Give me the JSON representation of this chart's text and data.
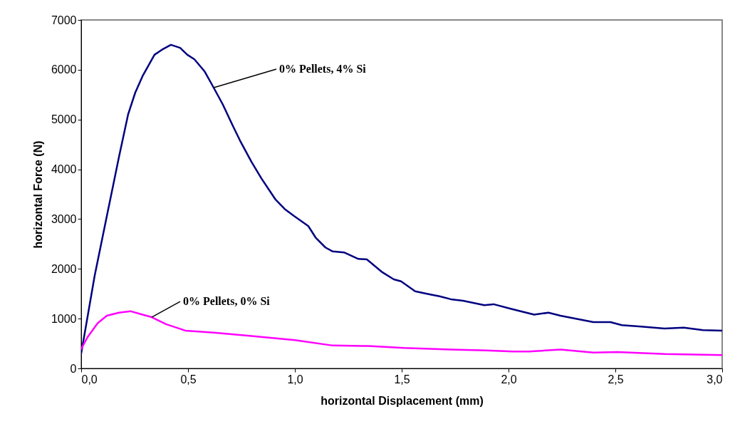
{
  "chart_data": {
    "type": "line",
    "xlabel": "horizontal Displacement (mm)",
    "ylabel": "horizontal Force (N)",
    "xlim": [
      0,
      3
    ],
    "xticks": [
      {
        "value": 0,
        "label": "0,0"
      },
      {
        "value": 0.5,
        "label": "0,5"
      },
      {
        "value": 1,
        "label": "1,0"
      },
      {
        "value": 1.5,
        "label": "1,5"
      },
      {
        "value": 2,
        "label": "2,0"
      },
      {
        "value": 2.5,
        "label": "2,5"
      },
      {
        "value": 3,
        "label": "3,0"
      }
    ],
    "ylim": [
      0,
      7000
    ],
    "yticks": [
      0,
      1000,
      2000,
      3000,
      4000,
      5000,
      6000,
      7000
    ],
    "grid": false,
    "series": [
      {
        "color": "#000080",
        "x": [
          0,
          0.063,
          0.12,
          0.177,
          0.22,
          0.253,
          0.287,
          0.343,
          0.377,
          0.42,
          0.463,
          0.497,
          0.53,
          0.577,
          0.62,
          0.663,
          0.71,
          0.743,
          0.797,
          0.843,
          0.91,
          0.953,
          0.997,
          1.063,
          1.097,
          1.143,
          1.177,
          1.23,
          1.297,
          1.337,
          1.41,
          1.463,
          1.497,
          1.563,
          1.63,
          1.677,
          1.73,
          1.787,
          1.887,
          1.93,
          2.01,
          2.12,
          2.187,
          2.243,
          2.397,
          2.477,
          2.53,
          2.62,
          2.73,
          2.82,
          2.91,
          3.0
        ],
        "values": [
          300,
          1860,
          3060,
          4250,
          5110,
          5540,
          5870,
          6300,
          6400,
          6500,
          6440,
          6300,
          6210,
          5970,
          5640,
          5300,
          4870,
          4580,
          4150,
          3820,
          3390,
          3200,
          3060,
          2860,
          2630,
          2430,
          2350,
          2330,
          2200,
          2190,
          1930,
          1790,
          1750,
          1550,
          1490,
          1450,
          1390,
          1360,
          1270,
          1290,
          1200,
          1080,
          1120,
          1060,
          930,
          930,
          870,
          840,
          800,
          820,
          770,
          760
        ]
      },
      {
        "color": "#ff00ff",
        "x": [
          0,
          0.03,
          0.077,
          0.12,
          0.177,
          0.23,
          0.287,
          0.33,
          0.397,
          0.487,
          0.62,
          0.797,
          1.0,
          1.177,
          1.343,
          1.51,
          1.73,
          1.897,
          2.02,
          2.097,
          2.243,
          2.397,
          2.51,
          2.73,
          3.0
        ],
        "values": [
          390,
          630,
          910,
          1060,
          1120,
          1150,
          1080,
          1030,
          890,
          760,
          720,
          650,
          570,
          460,
          450,
          410,
          380,
          360,
          340,
          340,
          380,
          320,
          330,
          290,
          270
        ]
      }
    ],
    "annotations": [
      {
        "text": "0% Pellets, 4% Si",
        "x": 0.62,
        "y": 5640
      },
      {
        "text": "0% Pellets, 0% Si",
        "x": 0.33,
        "y": 1030
      }
    ]
  }
}
